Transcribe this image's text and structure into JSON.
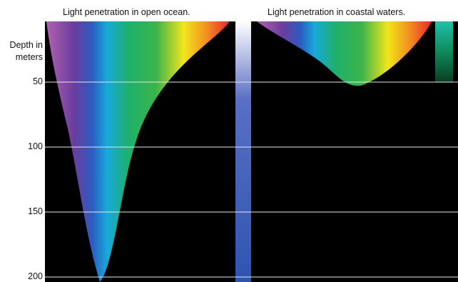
{
  "panels": [
    {
      "title": "Light penetration in open ocean."
    },
    {
      "title": "Light penetration in coastal waters."
    }
  ],
  "depth_axis": {
    "label": "Depth in meters",
    "ylim": [
      0,
      200
    ],
    "yticks": [
      50,
      100,
      150,
      200
    ]
  }
}
